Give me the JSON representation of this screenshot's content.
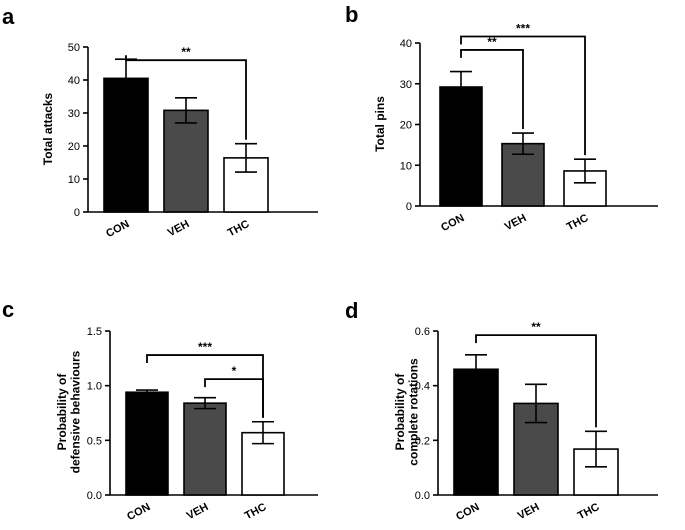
{
  "chart_data": [
    {
      "panel": "a",
      "type": "bar",
      "title": "",
      "xlabel": "",
      "ylabel": "Total attacks",
      "ylim": [
        0,
        50
      ],
      "yticks": [
        "0",
        "10",
        "20",
        "30",
        "40",
        "50"
      ],
      "categories": [
        "CON",
        "VEH",
        "THC"
      ],
      "values": [
        40.5,
        30.8,
        16.4
      ],
      "errors": [
        5.8,
        3.8,
        4.3
      ],
      "fills": [
        "#000000",
        "#4a4a4a",
        "#ffffff"
      ],
      "annotations": [
        {
          "from": 0,
          "to": 2,
          "level": 46,
          "label": "**"
        }
      ]
    },
    {
      "panel": "b",
      "type": "bar",
      "title": "",
      "xlabel": "",
      "ylabel": "Total pins",
      "ylim": [
        0,
        40
      ],
      "yticks": [
        "0",
        "10",
        "20",
        "30",
        "40"
      ],
      "categories": [
        "CON",
        "VEH",
        "THC"
      ],
      "values": [
        29.2,
        15.3,
        8.6
      ],
      "errors": [
        3.8,
        2.6,
        2.9
      ],
      "fills": [
        "#000000",
        "#4a4a4a",
        "#ffffff"
      ],
      "annotations": [
        {
          "from": 0,
          "to": 1,
          "level": 38.3,
          "label": "**"
        },
        {
          "from": 0,
          "to": 2,
          "level": 41.6,
          "label": "***"
        }
      ]
    },
    {
      "panel": "c",
      "type": "bar",
      "title": "",
      "xlabel": "",
      "ylabel": "Probability of defensive behaviours",
      "ylabel_lines": [
        "Probability of",
        "defensive behaviours"
      ],
      "ylim": [
        0,
        1.5
      ],
      "yticks": [
        "0.0",
        "0.5",
        "1.0",
        "1.5"
      ],
      "categories": [
        "CON",
        "VEH",
        "THC"
      ],
      "values": [
        0.94,
        0.84,
        0.57
      ],
      "errors": [
        0.02,
        0.05,
        0.1
      ],
      "fills": [
        "#000000",
        "#4a4a4a",
        "#ffffff"
      ],
      "annotations": [
        {
          "from": 0,
          "to": 2,
          "level": 1.28,
          "label": "***"
        },
        {
          "from": 1,
          "to": 2,
          "level": 1.06,
          "label": "*"
        }
      ]
    },
    {
      "panel": "d",
      "type": "bar",
      "title": "",
      "xlabel": "",
      "ylabel": "Probability of complete rotations",
      "ylabel_lines": [
        "Probability of",
        "complete rotations"
      ],
      "ylim": [
        0,
        0.6
      ],
      "yticks": [
        "0.0",
        "0.2",
        "0.4",
        "0.6"
      ],
      "categories": [
        "CON",
        "VEH",
        "THC"
      ],
      "values": [
        0.46,
        0.335,
        0.168
      ],
      "errors": [
        0.053,
        0.07,
        0.065
      ],
      "fills": [
        "#000000",
        "#4a4a4a",
        "#ffffff"
      ],
      "annotations": [
        {
          "from": 0,
          "to": 2,
          "level": 0.585,
          "label": "**"
        }
      ]
    }
  ]
}
